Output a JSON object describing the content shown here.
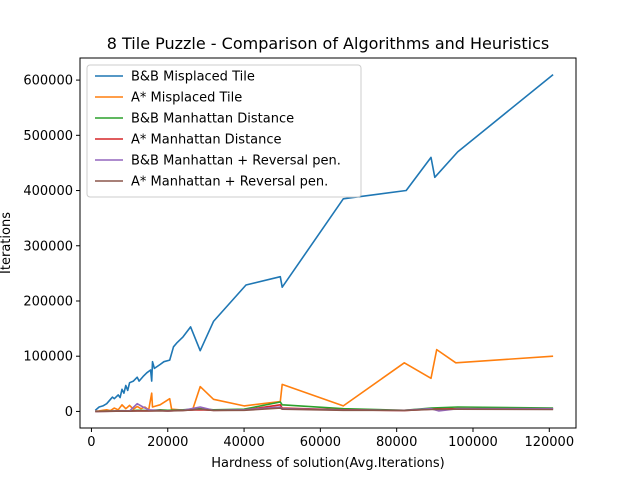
{
  "chart_data": {
    "type": "line",
    "title": "8 Tile Puzzle - Comparison of Algorithms and Heuristics",
    "xlabel": "Hardness of solution(Avg.Iterations)",
    "ylabel": "Iterations",
    "xlim": [
      -3000,
      127000
    ],
    "ylim": [
      -30000,
      640000
    ],
    "xticks": [
      0,
      20000,
      40000,
      60000,
      80000,
      100000,
      120000
    ],
    "yticks": [
      0,
      100000,
      200000,
      300000,
      400000,
      500000,
      600000
    ],
    "xtick_labels": [
      "0",
      "20000",
      "40000",
      "60000",
      "80000",
      "100000",
      "120000"
    ],
    "ytick_labels": [
      "0",
      "100000",
      "200000",
      "300000",
      "400000",
      "500000",
      "600000"
    ],
    "grid": false,
    "legend_position": "top-left",
    "series": [
      {
        "name": "B&B Misplaced Tile",
        "color": "#1f77b4",
        "points": [
          [
            1000,
            2000
          ],
          [
            2000,
            8000
          ],
          [
            3000,
            10000
          ],
          [
            4000,
            14000
          ],
          [
            5000,
            22000
          ],
          [
            5500,
            26000
          ],
          [
            6000,
            23000
          ],
          [
            7000,
            30000
          ],
          [
            7500,
            25000
          ],
          [
            8000,
            40000
          ],
          [
            8500,
            33000
          ],
          [
            9000,
            47000
          ],
          [
            9500,
            38000
          ],
          [
            10000,
            52000
          ],
          [
            11000,
            55000
          ],
          [
            12000,
            62000
          ],
          [
            12500,
            55000
          ],
          [
            13500,
            63000
          ],
          [
            14500,
            70000
          ],
          [
            15500,
            75000
          ],
          [
            15800,
            55000
          ],
          [
            16000,
            90000
          ],
          [
            16500,
            78000
          ],
          [
            18000,
            85000
          ],
          [
            19000,
            90000
          ],
          [
            20500,
            93000
          ],
          [
            21500,
            117000
          ],
          [
            22500,
            125000
          ],
          [
            24000,
            135000
          ],
          [
            26000,
            153000
          ],
          [
            28500,
            110000
          ],
          [
            32000,
            163000
          ],
          [
            40500,
            229000
          ],
          [
            49500,
            244000
          ],
          [
            50000,
            225000
          ],
          [
            66000,
            385000
          ],
          [
            82500,
            400000
          ],
          [
            89000,
            460000
          ],
          [
            90000,
            424000
          ],
          [
            96000,
            470000
          ],
          [
            121000,
            610000
          ]
        ]
      },
      {
        "name": "A* Misplaced Tile",
        "color": "#ff7f0e",
        "points": [
          [
            1000,
            500
          ],
          [
            2000,
            1000
          ],
          [
            3000,
            2000
          ],
          [
            4000,
            3000
          ],
          [
            5000,
            1500
          ],
          [
            6000,
            6000
          ],
          [
            7000,
            3000
          ],
          [
            8000,
            12000
          ],
          [
            9000,
            5000
          ],
          [
            10000,
            11000
          ],
          [
            11000,
            4000
          ],
          [
            12000,
            9000
          ],
          [
            13000,
            5000
          ],
          [
            14000,
            8000
          ],
          [
            15000,
            3000
          ],
          [
            15800,
            33000
          ],
          [
            16000,
            8000
          ],
          [
            17000,
            10000
          ],
          [
            18000,
            12000
          ],
          [
            20500,
            23000
          ],
          [
            21000,
            4000
          ],
          [
            23000,
            3000
          ],
          [
            26500,
            3000
          ],
          [
            28500,
            45000
          ],
          [
            32000,
            22000
          ],
          [
            40000,
            10000
          ],
          [
            49500,
            18000
          ],
          [
            50000,
            49000
          ],
          [
            66000,
            10000
          ],
          [
            82000,
            88000
          ],
          [
            89000,
            60000
          ],
          [
            90500,
            112000
          ],
          [
            95500,
            88000
          ],
          [
            121000,
            100000
          ]
        ]
      },
      {
        "name": "B&B Manhattan Distance",
        "color": "#2ca02c",
        "points": [
          [
            1000,
            200
          ],
          [
            5000,
            700
          ],
          [
            8000,
            1400
          ],
          [
            10000,
            1000
          ],
          [
            12000,
            2000
          ],
          [
            15000,
            1500
          ],
          [
            18000,
            3000
          ],
          [
            20000,
            2000
          ],
          [
            24000,
            3000
          ],
          [
            28500,
            5000
          ],
          [
            32000,
            3000
          ],
          [
            40000,
            4000
          ],
          [
            49500,
            17000
          ],
          [
            50000,
            12000
          ],
          [
            66000,
            5000
          ],
          [
            82000,
            2000
          ],
          [
            89000,
            6000
          ],
          [
            96000,
            8000
          ],
          [
            121000,
            6000
          ]
        ]
      },
      {
        "name": "A* Manhattan Distance",
        "color": "#d62728",
        "points": [
          [
            1000,
            100
          ],
          [
            5000,
            400
          ],
          [
            8000,
            800
          ],
          [
            10000,
            600
          ],
          [
            12000,
            1200
          ],
          [
            15000,
            900
          ],
          [
            18000,
            1500
          ],
          [
            20000,
            1000
          ],
          [
            24000,
            2000
          ],
          [
            28500,
            3000
          ],
          [
            32000,
            2000
          ],
          [
            40000,
            2500
          ],
          [
            49500,
            12000
          ],
          [
            50000,
            6000
          ],
          [
            66000,
            3000
          ],
          [
            82000,
            1500
          ],
          [
            89000,
            4000
          ],
          [
            96000,
            5000
          ],
          [
            121000,
            4000
          ]
        ]
      },
      {
        "name": "B&B Manhattan + Reversal pen.",
        "color": "#9467bd",
        "points": [
          [
            1000,
            150
          ],
          [
            5000,
            500
          ],
          [
            8000,
            1000
          ],
          [
            10000,
            700
          ],
          [
            12000,
            14000
          ],
          [
            13500,
            8000
          ],
          [
            15000,
            3000
          ],
          [
            18000,
            1500
          ],
          [
            20000,
            1000
          ],
          [
            24000,
            2000
          ],
          [
            28500,
            8000
          ],
          [
            32000,
            2000
          ],
          [
            40000,
            3000
          ],
          [
            49500,
            8000
          ],
          [
            50000,
            5000
          ],
          [
            66000,
            2500
          ],
          [
            82000,
            2000
          ],
          [
            89000,
            5000
          ],
          [
            91000,
            1000
          ],
          [
            96000,
            5000
          ],
          [
            121000,
            5000
          ]
        ]
      },
      {
        "name": "A* Manhattan + Reversal pen.",
        "color": "#8c564b",
        "points": [
          [
            1000,
            100
          ],
          [
            5000,
            300
          ],
          [
            8000,
            600
          ],
          [
            10000,
            500
          ],
          [
            12000,
            1000
          ],
          [
            15000,
            800
          ],
          [
            18000,
            1200
          ],
          [
            20000,
            900
          ],
          [
            24000,
            1500
          ],
          [
            28500,
            4000
          ],
          [
            32000,
            1800
          ],
          [
            40000,
            2000
          ],
          [
            49500,
            6000
          ],
          [
            50000,
            4000
          ],
          [
            66000,
            2000
          ],
          [
            82000,
            1800
          ],
          [
            89000,
            3500
          ],
          [
            96000,
            4000
          ],
          [
            121000,
            3500
          ]
        ]
      }
    ]
  }
}
